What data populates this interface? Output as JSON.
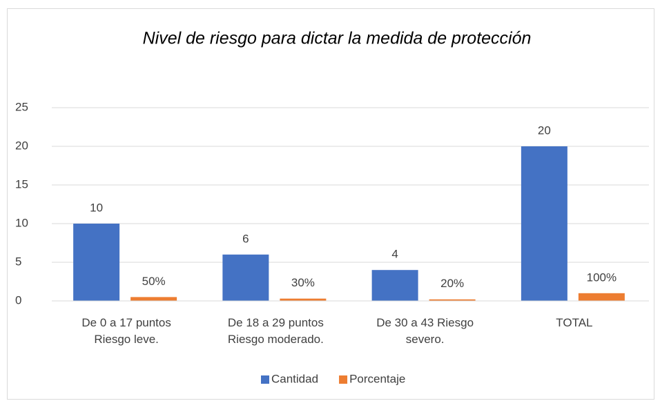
{
  "chart_data": {
    "type": "bar",
    "title": "Nivel de riesgo para dictar la medida de protección",
    "categories": [
      "De 0 a 17 puntos Riesgo leve.",
      "De 18 a 29 puntos Riesgo moderado.",
      "De 30 a 43 Riesgo severo.",
      "TOTAL"
    ],
    "series": [
      {
        "name": "Cantidad",
        "color": "#4472c4",
        "values": [
          10,
          6,
          4,
          20
        ]
      },
      {
        "name": "Porcentaje",
        "color": "#ed7d31",
        "values": [
          0.5,
          0.3,
          0.2,
          1
        ],
        "value_labels": [
          "50%",
          "30%",
          "20%",
          "100%"
        ]
      }
    ],
    "ylim": [
      0,
      25
    ],
    "yticks": [
      0,
      5,
      10,
      15,
      20,
      25
    ],
    "grid": true,
    "legend": "bottom"
  }
}
